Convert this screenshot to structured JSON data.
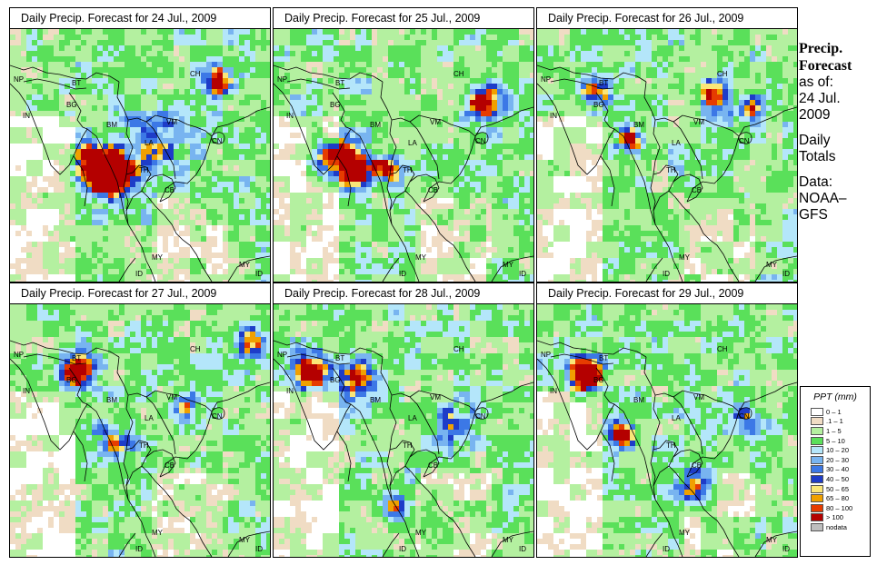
{
  "panels": [
    {
      "title": "Daily Precip. Forecast for  24 Jul., 2009"
    },
    {
      "title": "Daily Precip. Forecast for  25 Jul., 2009"
    },
    {
      "title": "Daily Precip. Forecast for  26 Jul., 2009"
    },
    {
      "title": "Daily Precip. Forecast for  27 Jul., 2009"
    },
    {
      "title": "Daily Precip. Forecast for  28 Jul., 2009"
    },
    {
      "title": "Daily Precip. Forecast for  29 Jul., 2009"
    }
  ],
  "map_labels": {
    "np": "NP",
    "bt": "BT",
    "bg": "BG",
    "in": "IN",
    "bm": "BM",
    "ch": "CH",
    "vm": "VM",
    "la": "LA",
    "th": "TH",
    "cb": "CB",
    "my": "MY",
    "my2": "MY",
    "id": "ID",
    "id2": "ID",
    "cn": "CN"
  },
  "sidebar": {
    "title_line1": "Precip.",
    "title_line2": "Forecast",
    "asof_line1": "as of:",
    "asof_line2": "24 Jul.",
    "asof_line3": "2009",
    "totals_line1": "Daily",
    "totals_line2": "Totals",
    "data_line1": "Data:",
    "data_line2": "NOAA–",
    "data_line3": "GFS"
  },
  "legend": {
    "title": "PPT (mm)",
    "items": [
      {
        "label": "0 – 1",
        "color": "#ffffff"
      },
      {
        "label": ".1 – 1",
        "color": "#f0dcc4"
      },
      {
        "label": "1 – 5",
        "color": "#b4f0a0"
      },
      {
        "label": "5 – 10",
        "color": "#5ae05a"
      },
      {
        "label": "10 – 20",
        "color": "#b4e6fa"
      },
      {
        "label": "20 – 30",
        "color": "#78b4f0"
      },
      {
        "label": "30 – 40",
        "color": "#3c78e6"
      },
      {
        "label": "40 – 50",
        "color": "#1e3cc8"
      },
      {
        "label": "50 – 65",
        "color": "#fae678"
      },
      {
        "label": "65 – 80",
        "color": "#f0a000"
      },
      {
        "label": "80 – 100",
        "color": "#e63c00"
      },
      {
        "label": "> 100",
        "color": "#b40000"
      },
      {
        "label": "nodata",
        "color": "#bebebe"
      }
    ]
  }
}
